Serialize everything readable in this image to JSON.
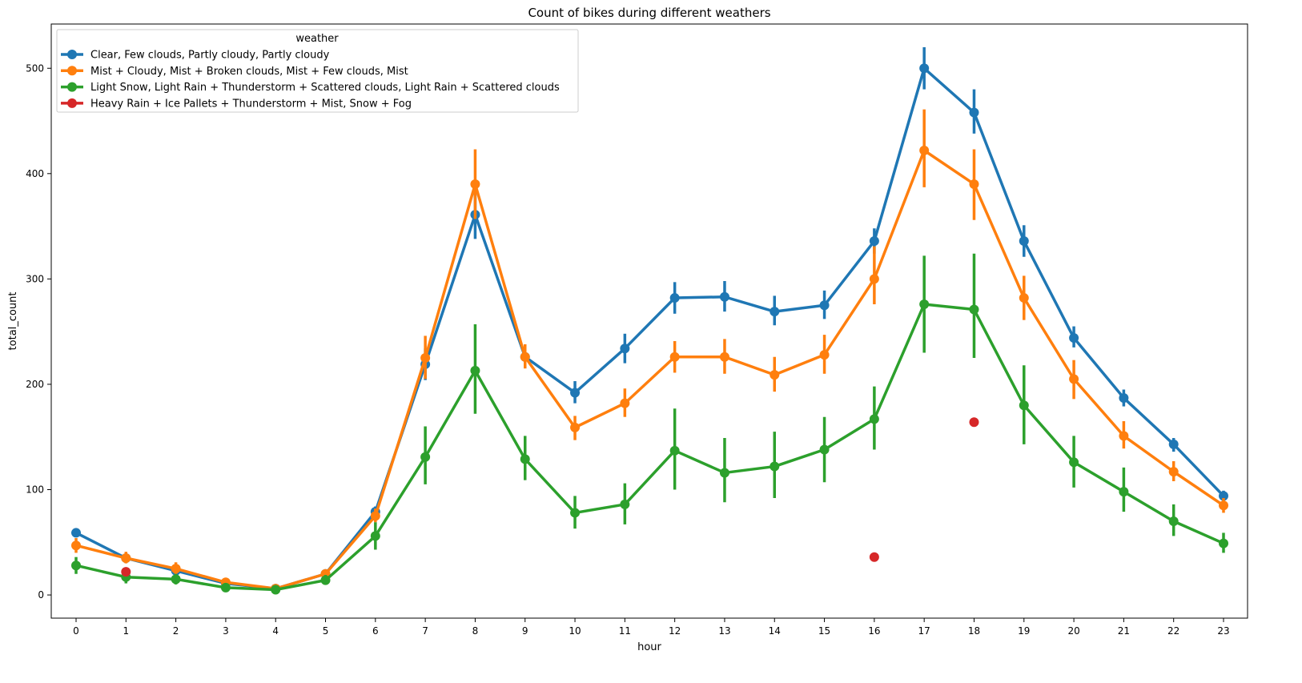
{
  "chart_data": {
    "type": "line",
    "title": "Count of bikes during different weathers",
    "xlabel": "hour",
    "ylabel": "total_count",
    "categories": [
      "0",
      "1",
      "2",
      "3",
      "4",
      "5",
      "6",
      "7",
      "8",
      "9",
      "10",
      "11",
      "12",
      "13",
      "14",
      "15",
      "16",
      "17",
      "18",
      "19",
      "20",
      "21",
      "22",
      "23"
    ],
    "ylim": [
      -22,
      542
    ],
    "yticks": [
      0,
      100,
      200,
      300,
      400,
      500
    ],
    "legend": {
      "title": "weather",
      "position": "top-left"
    },
    "series": [
      {
        "name": "Clear, Few clouds, Partly cloudy, Partly cloudy",
        "color": "#1f77b4",
        "values": [
          59,
          35,
          23,
          11,
          6,
          20,
          79,
          219,
          361,
          226,
          192,
          234,
          282,
          283,
          269,
          275,
          336,
          500,
          458,
          336,
          244,
          187,
          143,
          94
        ],
        "err_low": [
          56,
          31,
          20,
          9,
          5,
          17,
          74,
          204,
          338,
          217,
          182,
          220,
          267,
          269,
          256,
          262,
          324,
          480,
          438,
          321,
          235,
          179,
          136,
          89
        ],
        "err_high": [
          63,
          38,
          27,
          13,
          8,
          23,
          84,
          234,
          385,
          236,
          203,
          248,
          297,
          298,
          284,
          289,
          348,
          520,
          480,
          351,
          255,
          195,
          149,
          99
        ]
      },
      {
        "name": "Mist + Cloudy, Mist + Broken clouds, Mist + Few clouds, Mist",
        "color": "#ff7f0e",
        "values": [
          47,
          35,
          25,
          12,
          6,
          20,
          75,
          225,
          390,
          226,
          159,
          182,
          226,
          226,
          209,
          228,
          300,
          422,
          390,
          282,
          205,
          151,
          117,
          85
        ],
        "err_low": [
          40,
          30,
          20,
          9,
          4,
          16,
          69,
          205,
          357,
          215,
          147,
          169,
          211,
          210,
          193,
          210,
          276,
          387,
          356,
          261,
          186,
          139,
          108,
          78
        ],
        "err_high": [
          54,
          41,
          31,
          15,
          8,
          24,
          82,
          246,
          423,
          238,
          170,
          196,
          241,
          243,
          226,
          247,
          331,
          461,
          423,
          303,
          223,
          165,
          127,
          92
        ]
      },
      {
        "name": "Light Snow, Light Rain + Thunderstorm + Scattered clouds, Light Rain + Scattered clouds",
        "color": "#2ca02c",
        "values": [
          28,
          17,
          15,
          7,
          5,
          14,
          56,
          131,
          213,
          129,
          78,
          86,
          137,
          116,
          122,
          138,
          167,
          276,
          271,
          180,
          126,
          98,
          70,
          49
        ],
        "err_low": [
          20,
          11,
          10,
          4,
          3,
          10,
          43,
          105,
          172,
          109,
          63,
          67,
          100,
          88,
          92,
          107,
          138,
          230,
          225,
          143,
          102,
          79,
          56,
          40
        ],
        "err_high": [
          36,
          23,
          20,
          11,
          8,
          19,
          69,
          160,
          257,
          151,
          94,
          106,
          177,
          149,
          155,
          169,
          198,
          322,
          324,
          218,
          151,
          121,
          86,
          59
        ]
      },
      {
        "name": "Heavy Rain + Ice Pallets + Thunderstorm + Mist, Snow + Fog",
        "color": "#d62728",
        "points": [
          {
            "x": "1",
            "y": 22
          },
          {
            "x": "16",
            "y": 36
          },
          {
            "x": "18",
            "y": 164
          }
        ]
      }
    ]
  }
}
